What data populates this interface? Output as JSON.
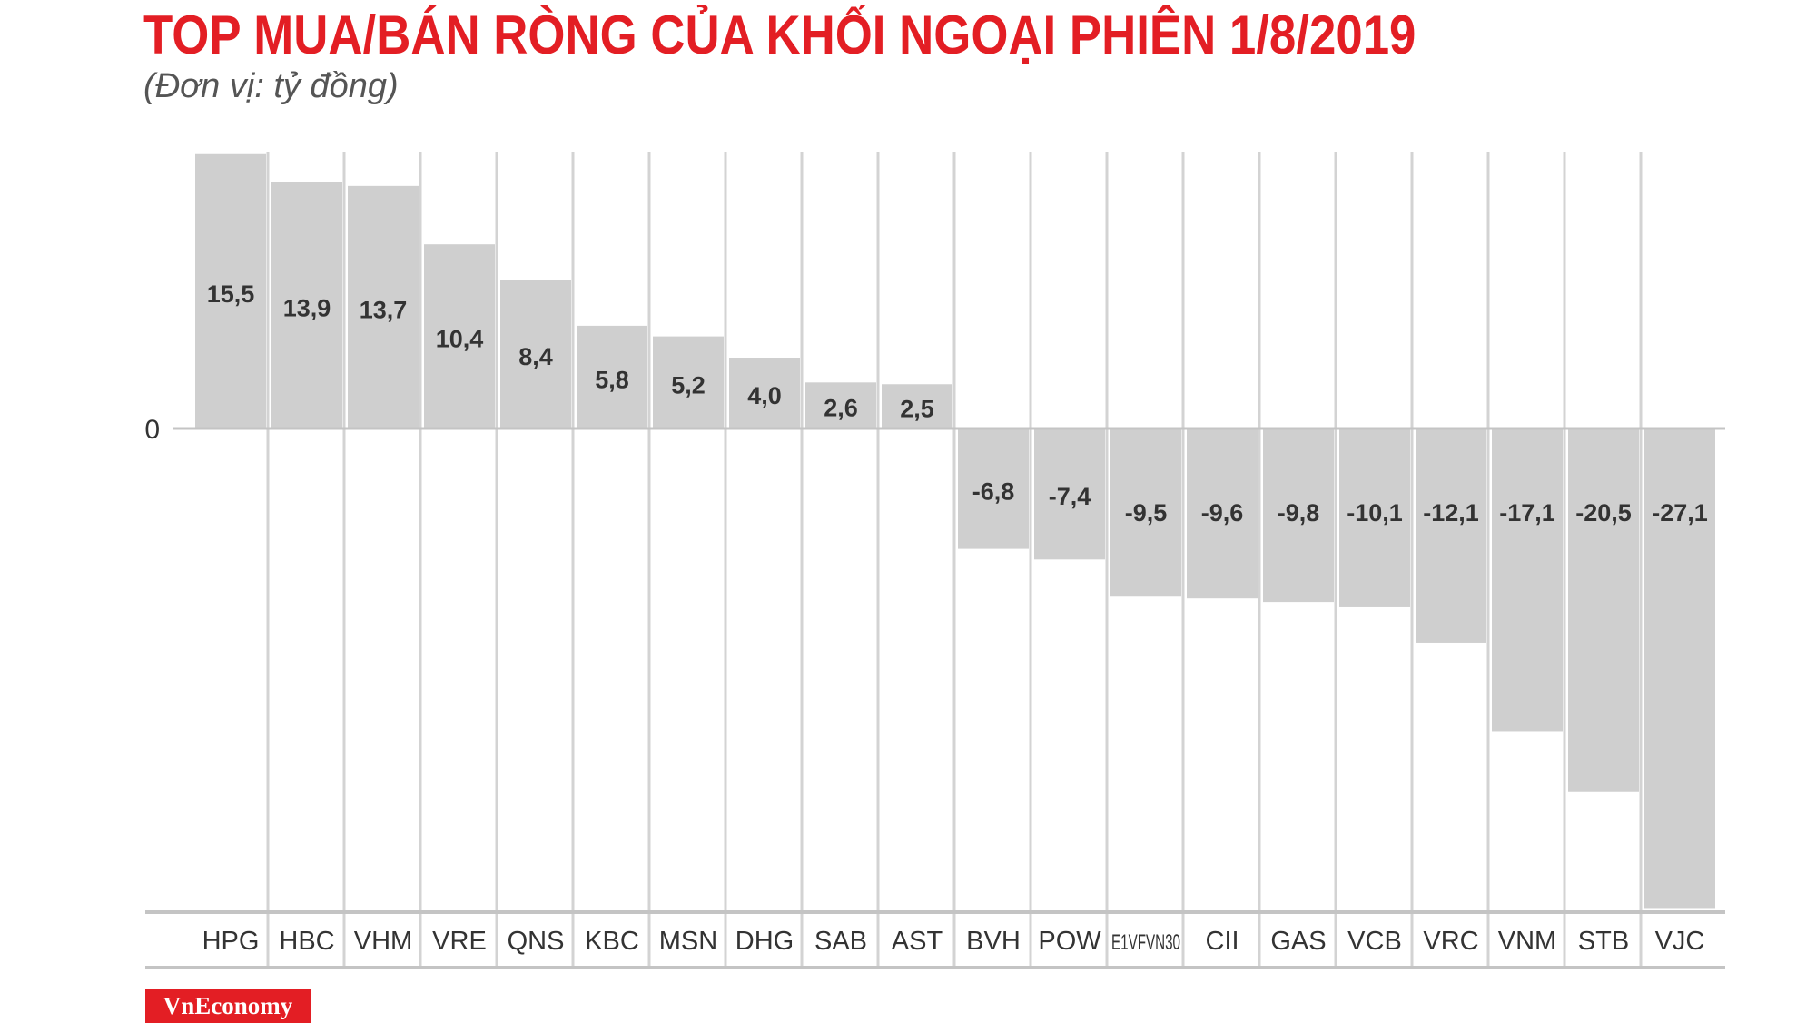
{
  "header": {
    "title": "TOP MUA/BÁN RÒNG CỦA KHỐI NGOẠI PHIÊN 1/8/2019",
    "subtitle": "(Đơn vị: tỷ đồng)"
  },
  "brand": {
    "logo_text": "VnEconomy",
    "accent_color": "#e31e24"
  },
  "chart_data": {
    "type": "bar",
    "title": "TOP MUA/BÁN RÒNG CỦA KHỐI NGOẠI PHIÊN 1/8/2019",
    "subtitle": "(Đơn vị: tỷ đồng)",
    "xlabel": "",
    "ylabel": "",
    "zero_label": "0",
    "ylim": [
      -27.1,
      15.5
    ],
    "grid": true,
    "bar_color": "#cfcfcf",
    "grid_color": "#d3d3d3",
    "categories": [
      "HPG",
      "HBC",
      "VHM",
      "VRE",
      "QNS",
      "KBC",
      "MSN",
      "DHG",
      "SAB",
      "AST",
      "BVH",
      "POW",
      "E1VFVN30",
      "CII",
      "GAS",
      "VCB",
      "VRC",
      "VNM",
      "STB",
      "VJC"
    ],
    "values": [
      15.5,
      13.9,
      13.7,
      10.4,
      8.4,
      5.8,
      5.2,
      4.0,
      2.6,
      2.5,
      -6.8,
      -7.4,
      -9.5,
      -9.6,
      -9.8,
      -10.1,
      -12.1,
      -17.1,
      -20.5,
      -27.1
    ],
    "value_labels": [
      "15,5",
      "13,9",
      "13,7",
      "10,4",
      "8,4",
      "5,8",
      "5,2",
      "4,0",
      "2,6",
      "2,5",
      "-6,8",
      "-7,4",
      "-9,5",
      "-9,6",
      "-9,8",
      "-10,1",
      "-12,1",
      "-17,1",
      "-20,5",
      "-27,1"
    ]
  }
}
